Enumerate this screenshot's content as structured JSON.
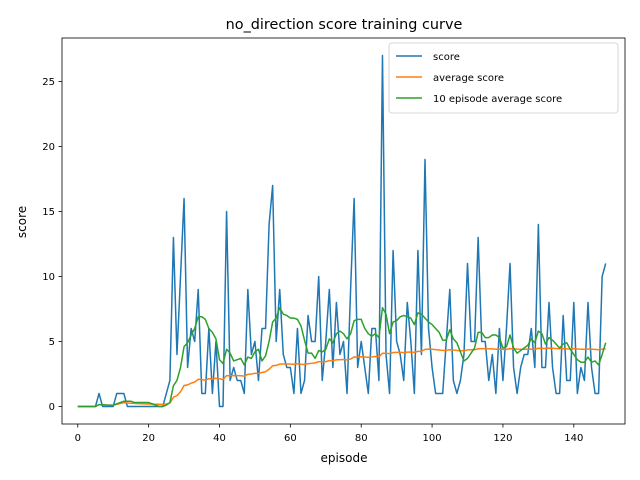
{
  "chart_data": {
    "type": "line",
    "title": "no_direction score training curve",
    "xlabel": "episode",
    "ylabel": "score",
    "xlim": [
      -4.45,
      154.45
    ],
    "ylim": [
      -1.35,
      28.35
    ],
    "xticks": [
      0,
      20,
      40,
      60,
      80,
      100,
      120,
      140
    ],
    "yticks": [
      0,
      5,
      10,
      15,
      20,
      25
    ],
    "grid": false,
    "legend_position": "top-right",
    "series": [
      {
        "name": "score",
        "color": "#1f77b4",
        "values": [
          0,
          0,
          0,
          0,
          0,
          0,
          1,
          0,
          0,
          0,
          0,
          1,
          1,
          1,
          0,
          0,
          0,
          0,
          0,
          0,
          0,
          0,
          0,
          0,
          0,
          1,
          2,
          13,
          4,
          10,
          16,
          3,
          6,
          5,
          9,
          1,
          1,
          6,
          1,
          5,
          0,
          0,
          15,
          2,
          3,
          2,
          2,
          1,
          9,
          4,
          5,
          2,
          6,
          6,
          14,
          17,
          5,
          9,
          4,
          3,
          3,
          1,
          6,
          1,
          2,
          7,
          5,
          5,
          10,
          2,
          5,
          9,
          3,
          8,
          4,
          5,
          1,
          9,
          16,
          3,
          5,
          3,
          1,
          6,
          6,
          2,
          27,
          4,
          1,
          12,
          5,
          4,
          2,
          8,
          5,
          1,
          12,
          4,
          19,
          6,
          3,
          1,
          1,
          1,
          5,
          9,
          2,
          1,
          2,
          4,
          11,
          5,
          5,
          13,
          5,
          5,
          2,
          4,
          1,
          6,
          2,
          6,
          11,
          3,
          1,
          3,
          4,
          4,
          6,
          3,
          14,
          3,
          3,
          8,
          3,
          1,
          1,
          7,
          2,
          2,
          8,
          1,
          3,
          2,
          8,
          3,
          1,
          1,
          10,
          11
        ]
      },
      {
        "name": "average score",
        "color": "#ff7f0e",
        "values": [
          0,
          0,
          0,
          0,
          0,
          0,
          0.14,
          0.13,
          0.11,
          0.1,
          0.09,
          0.17,
          0.23,
          0.29,
          0.27,
          0.25,
          0.24,
          0.22,
          0.21,
          0.2,
          0.19,
          0.18,
          0.17,
          0.17,
          0.16,
          0.19,
          0.26,
          0.71,
          0.83,
          1.13,
          1.61,
          1.66,
          1.79,
          1.88,
          2.09,
          2.06,
          2.03,
          2.14,
          2.1,
          2.17,
          2.12,
          2.07,
          2.37,
          2.36,
          2.38,
          2.37,
          2.36,
          2.33,
          2.47,
          2.5,
          2.55,
          2.54,
          2.61,
          2.67,
          2.87,
          3.13,
          3.16,
          3.26,
          3.27,
          3.27,
          3.27,
          3.24,
          3.29,
          3.25,
          3.23,
          3.29,
          3.32,
          3.35,
          3.45,
          3.43,
          3.45,
          3.53,
          3.53,
          3.59,
          3.59,
          3.61,
          3.58,
          3.65,
          3.81,
          3.8,
          3.82,
          3.81,
          3.78,
          3.81,
          3.84,
          3.82,
          4.09,
          4.09,
          4.06,
          4.15,
          4.16,
          4.16,
          4.14,
          4.18,
          4.19,
          4.16,
          4.24,
          4.24,
          4.39,
          4.41,
          4.4,
          4.37,
          4.34,
          4.31,
          4.32,
          4.36,
          4.34,
          4.31,
          4.29,
          4.29,
          4.35,
          4.36,
          4.36,
          4.44,
          4.45,
          4.45,
          4.43,
          4.43,
          4.4,
          4.41,
          4.39,
          4.39,
          4.45,
          4.44,
          4.41,
          4.4,
          4.4,
          4.4,
          4.41,
          4.4,
          4.48,
          4.47,
          4.46,
          4.49,
          4.48,
          4.46,
          4.43,
          4.45,
          4.43,
          4.42,
          4.45,
          4.42,
          4.41,
          4.39,
          4.42,
          4.41,
          4.39,
          4.36,
          4.4,
          4.45
        ]
      },
      {
        "name": "10 episode average score",
        "color": "#2ca02c",
        "values": [
          0,
          0,
          0,
          0,
          0,
          0,
          0.14,
          0.13,
          0.11,
          0.1,
          0.1,
          0.2,
          0.3,
          0.4,
          0.4,
          0.4,
          0.3,
          0.3,
          0.3,
          0.3,
          0.3,
          0.2,
          0.1,
          0,
          0,
          0.1,
          0.3,
          1.6,
          2,
          3,
          4.6,
          4.9,
          5.5,
          6,
          6.9,
          6.9,
          6.7,
          6,
          5.7,
          5.2,
          3.6,
          3.3,
          4.4,
          4.1,
          3.5,
          3.6,
          3.7,
          3.2,
          3.8,
          3.7,
          4.2,
          4.4,
          3.5,
          3.9,
          5,
          6.5,
          6.8,
          7.6,
          7.1,
          7,
          6.8,
          6.8,
          6.7,
          6.2,
          5.1,
          4.1,
          4.1,
          3.7,
          4.3,
          4.2,
          4.4,
          5.2,
          4.9,
          5.6,
          5.8,
          5.6,
          5.2,
          5.6,
          6.6,
          6.7,
          6.7,
          6,
          5.6,
          5.4,
          5.6,
          5.3,
          7.6,
          7.1,
          5.6,
          6.5,
          6.6,
          6.9,
          7,
          6.9,
          6.8,
          6.3,
          7.2,
          7.1,
          6.8,
          6.5,
          6.3,
          6,
          5.7,
          5.1,
          5.1,
          5.9,
          5.2,
          4.9,
          4.2,
          3.5,
          3.7,
          4.1,
          4.5,
          5.7,
          5.7,
          5.3,
          5.3,
          5.5,
          5.5,
          5.3,
          4.5,
          4.6,
          5.5,
          4.5,
          4.1,
          4.3,
          4.5,
          4.7,
          5.2,
          4.9,
          5.8,
          5.6,
          4.8,
          5.3,
          5.1,
          4.8,
          4.5,
          4.8,
          4.9,
          4.4,
          4,
          3.6,
          3.4,
          3.4,
          3.8,
          3.4,
          3.5,
          3.2,
          4,
          4.9
        ]
      }
    ]
  }
}
